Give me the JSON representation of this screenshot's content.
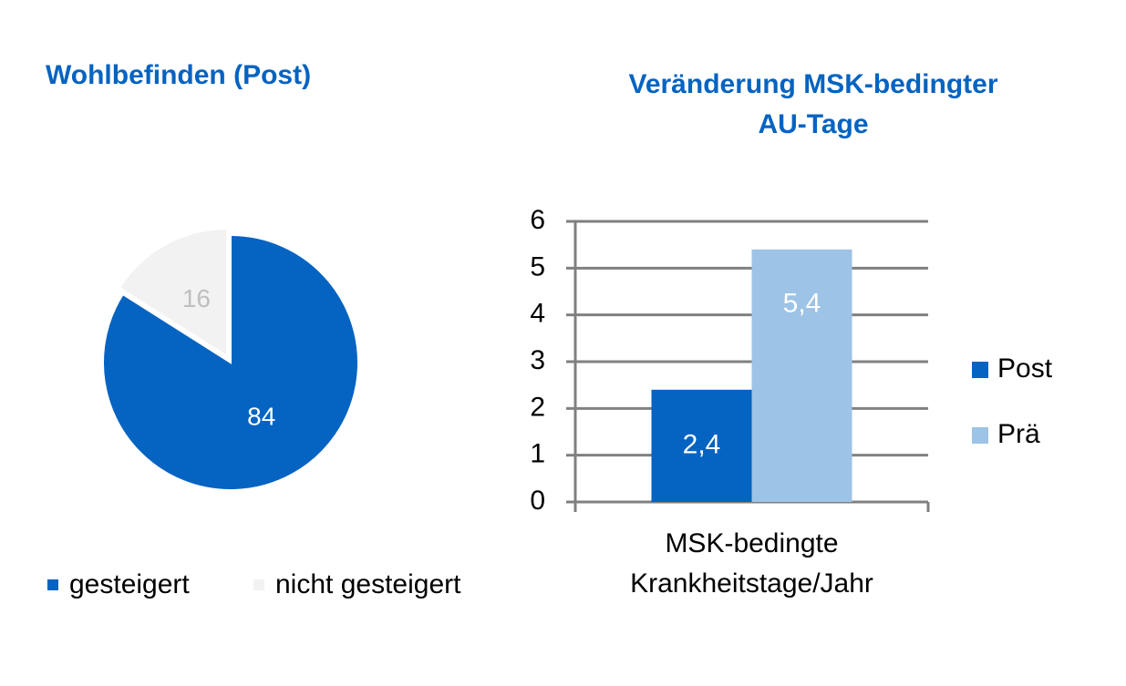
{
  "chart_data": [
    {
      "type": "pie",
      "title": "Wohlbefinden (Post)",
      "categories": [
        "gesteigert",
        "nicht gesteigert"
      ],
      "values": [
        84,
        16
      ],
      "colors": [
        "#0563c1",
        "#f2f2f2"
      ],
      "label_colors": [
        "#ffffff",
        "#bfbfbf"
      ],
      "legend": "bottom"
    },
    {
      "type": "bar",
      "title": [
        "Veränderung MSK-bedingter",
        "AU-Tage"
      ],
      "categories": [
        [
          "MSK-bedingte",
          "Krankheitstage/Jahr"
        ]
      ],
      "series": [
        {
          "name": "Post",
          "color": "#0563c1",
          "values": [
            2.4
          ],
          "value_labels": [
            "2,4"
          ]
        },
        {
          "name": "Prä",
          "color": "#9dc3e6",
          "values": [
            5.4
          ],
          "value_labels": [
            "5,4"
          ]
        }
      ],
      "ylim": [
        0,
        6
      ],
      "yticks": [
        0,
        1,
        2,
        3,
        4,
        5,
        6
      ],
      "grid": true,
      "legend": "right"
    }
  ]
}
